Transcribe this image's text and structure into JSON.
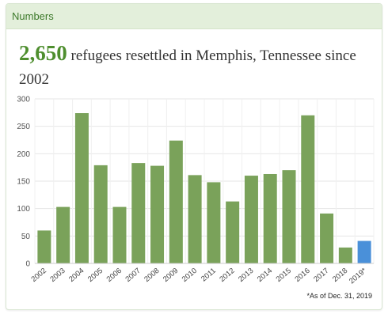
{
  "panel": {
    "header": "Numbers",
    "headline_number": "2,650",
    "headline_text": "refugees resettled in Memphis, Tennessee since 2002",
    "footnote": "*As of Dec. 31, 2019"
  },
  "colors": {
    "bar": "#7aa25a",
    "highlight": "#4a90d9",
    "accent": "#4e8e2e",
    "grid": "#e6e6e6"
  },
  "chart_data": {
    "type": "bar",
    "categories": [
      "2002",
      "2003",
      "2004",
      "2005",
      "2006",
      "2007",
      "2008",
      "2009",
      "2010",
      "2011",
      "2012",
      "2013",
      "2014",
      "2015",
      "2016",
      "2017",
      "2018",
      "2019*"
    ],
    "values": [
      60,
      103,
      274,
      179,
      103,
      183,
      178,
      224,
      161,
      148,
      113,
      160,
      163,
      170,
      270,
      91,
      29,
      41
    ],
    "highlight_index": 17,
    "title": "",
    "xlabel": "",
    "ylabel": "",
    "ylim": [
      0,
      300
    ],
    "yticks": [
      0,
      50,
      100,
      150,
      200,
      250,
      300
    ],
    "grid": true
  }
}
